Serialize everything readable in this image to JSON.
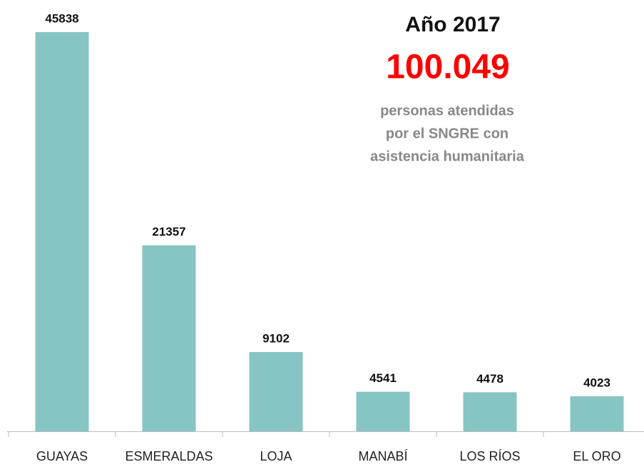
{
  "chart_data": {
    "type": "bar",
    "title": "Año 2017",
    "highlight": "100.049",
    "subtitle": [
      "personas atendidas",
      "por el SNGRE con",
      "asistencia humanitaria"
    ],
    "categories": [
      "GUAYAS",
      "ESMERALDAS",
      "LOJA",
      "MANABÍ",
      "LOS RÍOS",
      "EL ORO"
    ],
    "values": [
      45838,
      21357,
      9102,
      4541,
      4478,
      4023
    ],
    "color": "#86c5c3"
  }
}
